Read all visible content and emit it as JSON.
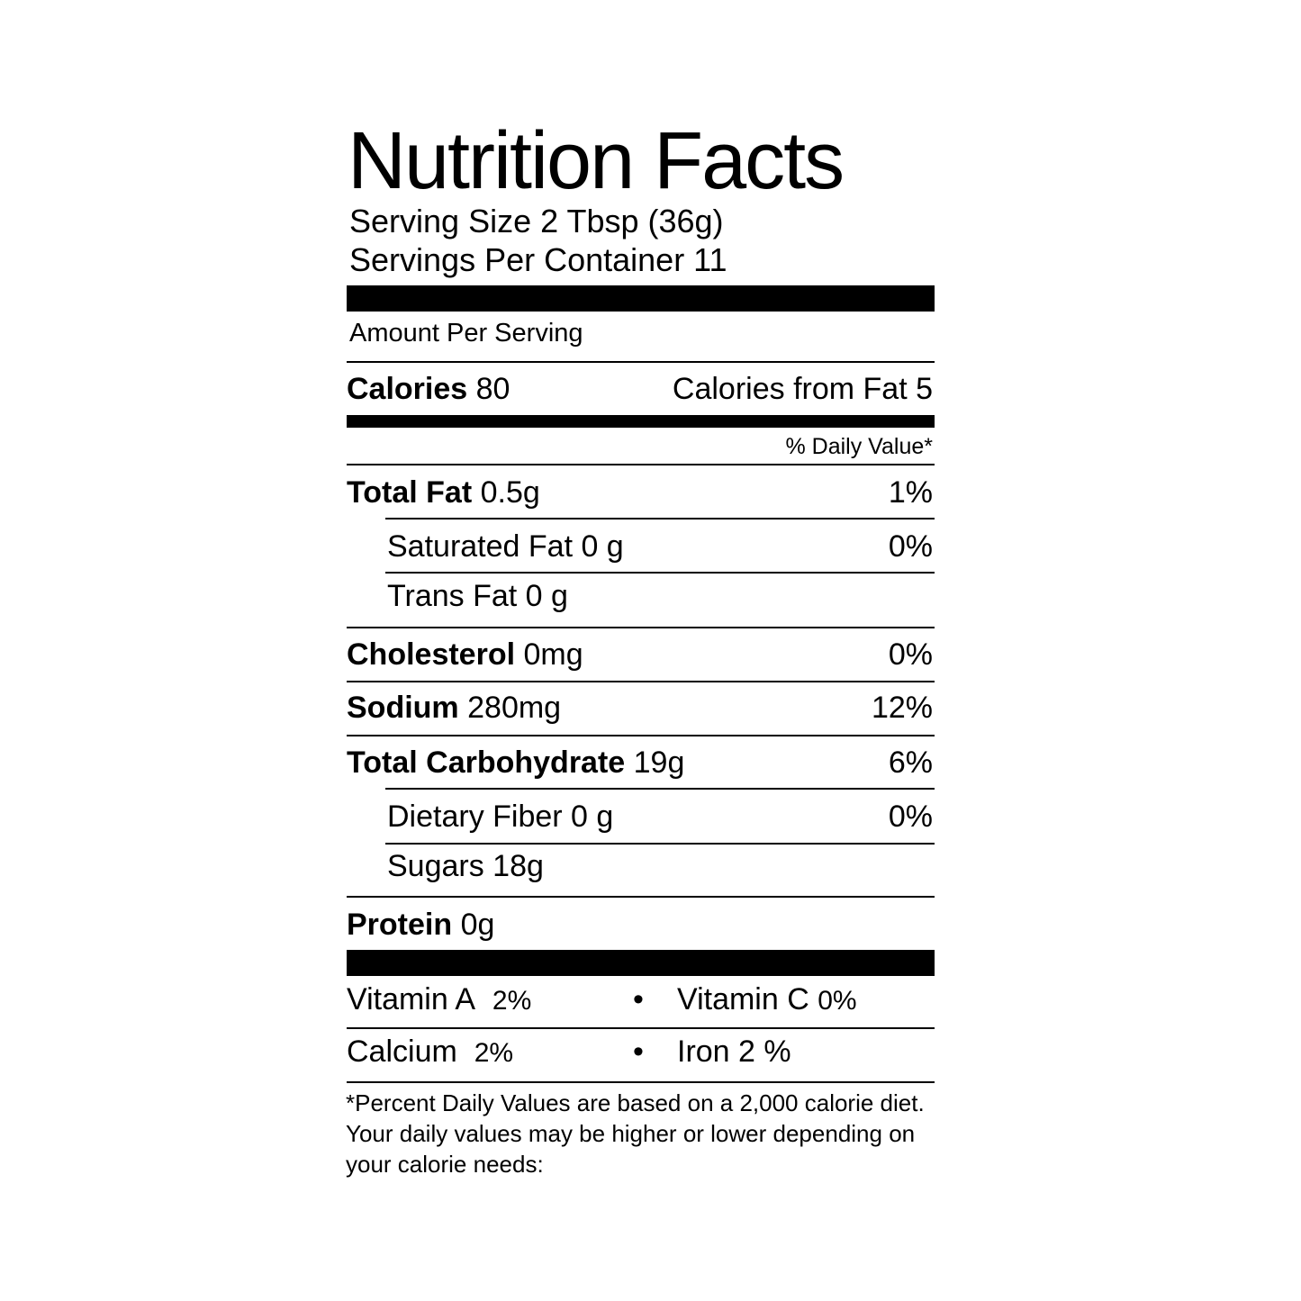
{
  "title": "Nutrition Facts",
  "serving_size": "Serving Size 2 Tbsp (36g)",
  "servings_per_container": "Servings Per Container 11",
  "amount_per_serving": "Amount Per Serving",
  "calories": {
    "label": "Calories",
    "value": "80",
    "from_fat": "Calories from Fat 5"
  },
  "daily_value_header": "% Daily Value*",
  "nutrients": [
    {
      "label": "Total Fat",
      "value": "0.5g",
      "dv": "1%"
    },
    {
      "label": "Saturated Fat 0 g",
      "dv": "0%"
    },
    {
      "label": "Trans Fat 0 g"
    },
    {
      "label": "Cholesterol",
      "value": "0mg",
      "dv": "0%"
    },
    {
      "label": "Sodium",
      "value": "280mg",
      "dv": "12%"
    },
    {
      "label": "Total Carbohydrate",
      "value": "19g",
      "dv": "6%"
    },
    {
      "label": "Dietary Fiber 0 g",
      "dv": "0%"
    },
    {
      "label": "Sugars 18g"
    },
    {
      "label": "Protein",
      "value": "0g"
    }
  ],
  "vitamins": {
    "vitamin_a": {
      "label": "Vitamin A",
      "value": "2%"
    },
    "vitamin_c": {
      "label": "Vitamin C",
      "value": "0%"
    },
    "calcium": {
      "label": "Calcium",
      "value": "2%"
    },
    "iron": {
      "label": "Iron 2 %"
    },
    "bullet": "•"
  },
  "footnote": "*Percent Daily Values are based on a 2,000 calorie diet.  Your daily values may be higher or lower depending on your calorie needs:"
}
